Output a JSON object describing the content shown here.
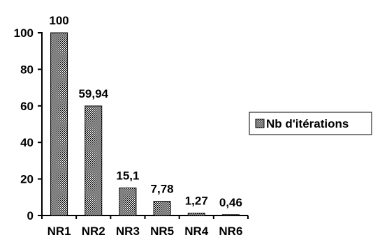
{
  "chart_data": {
    "type": "bar",
    "categories": [
      "NR1",
      "NR2",
      "NR3",
      "NR5",
      "NR4",
      "NR6"
    ],
    "series": [
      {
        "name": "Nb d'itérations",
        "values": [
          100,
          59.94,
          15.1,
          7.78,
          1.27,
          0.46
        ]
      }
    ],
    "data_labels": [
      "100",
      "59,94",
      "15,1",
      "7,78",
      "1,27",
      "0,46"
    ],
    "y_ticks": [
      0,
      20,
      40,
      60,
      80,
      100
    ],
    "ylim": [
      0,
      100
    ],
    "grid": false,
    "legend_position": "right",
    "bar_pattern": "crosshatch-dots",
    "colors": {
      "axis": "#000000",
      "bar_fill": "#ffffff",
      "bar_pattern": "#000000",
      "bar_stroke": "#000000"
    }
  }
}
